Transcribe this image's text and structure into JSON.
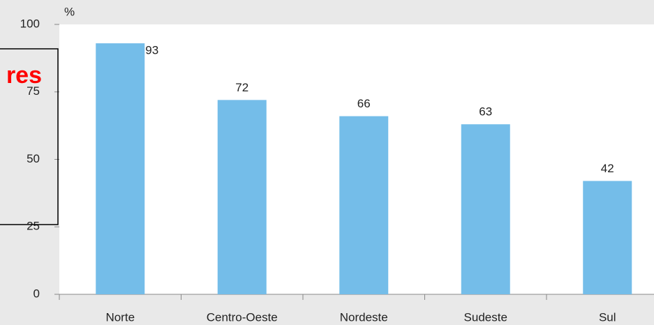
{
  "chart_data": {
    "type": "bar",
    "unit_label": "%",
    "categories": [
      "Norte",
      "Centro-Oeste",
      "Nordeste",
      "Sudeste",
      "Sul"
    ],
    "values": [
      93,
      72,
      66,
      63,
      42
    ],
    "color": "#74bde9",
    "ylim": [
      0,
      100
    ],
    "yticks": [
      0,
      25,
      50,
      75,
      100
    ],
    "grid": false
  },
  "overlay": {
    "text": "res"
  }
}
